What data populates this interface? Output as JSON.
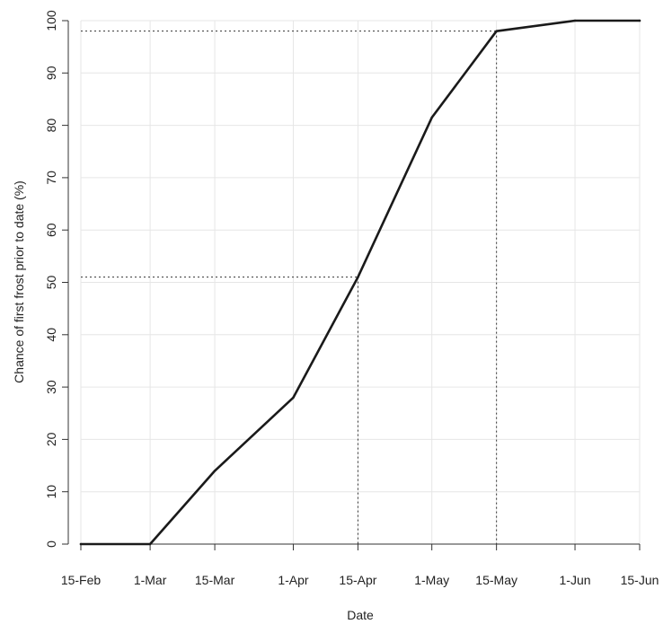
{
  "chart_data": {
    "type": "line",
    "title": "",
    "xlabel": "Date",
    "ylabel": "Chance of first frost prior to date (%)",
    "x_ticks": [
      {
        "date": "2000-02-15",
        "label": "15-Feb"
      },
      {
        "date": "2000-03-01",
        "label": "1-Mar"
      },
      {
        "date": "2000-03-15",
        "label": "15-Mar"
      },
      {
        "date": "2000-04-01",
        "label": "1-Apr"
      },
      {
        "date": "2000-04-15",
        "label": "15-Apr"
      },
      {
        "date": "2000-05-01",
        "label": "1-May"
      },
      {
        "date": "2000-05-15",
        "label": "15-May"
      },
      {
        "date": "2000-06-01",
        "label": "1-Jun"
      },
      {
        "date": "2000-06-15",
        "label": "15-Jun"
      }
    ],
    "y_ticks": [
      0,
      10,
      20,
      30,
      40,
      50,
      60,
      70,
      80,
      90,
      100
    ],
    "ylim": [
      0,
      100
    ],
    "xlim": [
      "2000-02-15",
      "2000-06-15"
    ],
    "grid": true,
    "series": [
      {
        "color": "#1a1a1a",
        "points": [
          {
            "x": "2000-02-15",
            "y": 0
          },
          {
            "x": "2000-03-01",
            "y": 0
          },
          {
            "x": "2000-03-15",
            "y": 14
          },
          {
            "x": "2000-04-01",
            "y": 28
          },
          {
            "x": "2000-04-15",
            "y": 51
          },
          {
            "x": "2000-05-01",
            "y": 81.5
          },
          {
            "x": "2000-05-15",
            "y": 98
          },
          {
            "x": "2000-06-01",
            "y": 100
          },
          {
            "x": "2000-06-15",
            "y": 100
          }
        ]
      }
    ],
    "reference_lines": [
      {
        "x": "2000-04-15",
        "y": 51
      },
      {
        "x": "2000-05-15",
        "y": 98
      }
    ]
  }
}
